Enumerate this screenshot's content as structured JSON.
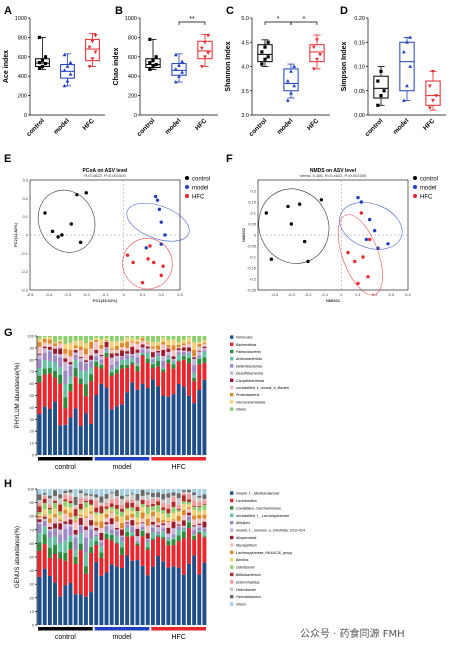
{
  "colors": {
    "control": "#000000",
    "model": "#1f3fbf",
    "HFC": "#e8262b"
  },
  "chart_data": [
    {
      "type": "box",
      "panel": "A",
      "ylabel": "Ace index",
      "categories": [
        "control",
        "model",
        "HFC"
      ],
      "ylim": [
        0,
        1000
      ],
      "yticks": [
        0,
        200,
        400,
        600,
        800,
        1000
      ],
      "ytick_labels": [
        "0",
        "200",
        "400",
        "600",
        "800",
        "1000"
      ],
      "boxes": [
        {
          "min": 470,
          "q1": 500,
          "median": 535,
          "q3": 580,
          "max": 800,
          "points": [
            480,
            500,
            530,
            540,
            560,
            600,
            800
          ]
        },
        {
          "min": 300,
          "q1": 380,
          "median": 450,
          "q3": 520,
          "max": 630,
          "points": [
            300,
            350,
            420,
            460,
            500,
            540,
            620
          ]
        },
        {
          "min": 500,
          "q1": 560,
          "median": 680,
          "q3": 780,
          "max": 840,
          "points": [
            500,
            580,
            650,
            700,
            760,
            820
          ]
        }
      ]
    },
    {
      "type": "box",
      "panel": "B",
      "ylabel": "Chao index",
      "categories": [
        "control",
        "model",
        "HFC"
      ],
      "ylim": [
        0,
        1000
      ],
      "yticks": [
        0,
        200,
        400,
        600,
        800,
        1000
      ],
      "ytick_labels": [
        "0",
        "200",
        "400",
        "600",
        "800",
        "1000"
      ],
      "boxes": [
        {
          "min": 470,
          "q1": 490,
          "median": 520,
          "q3": 580,
          "max": 780,
          "points": [
            470,
            500,
            520,
            540,
            560,
            600,
            780
          ]
        },
        {
          "min": 340,
          "q1": 410,
          "median": 460,
          "q3": 530,
          "max": 630,
          "points": [
            340,
            400,
            440,
            470,
            510,
            550,
            620
          ]
        },
        {
          "min": 500,
          "q1": 580,
          "median": 660,
          "q3": 760,
          "max": 830,
          "points": [
            500,
            600,
            640,
            690,
            750,
            820
          ]
        }
      ],
      "significance": [
        {
          "from": 1,
          "to": 2,
          "label": "**"
        }
      ]
    },
    {
      "type": "box",
      "panel": "C",
      "ylabel": "Shannon Index",
      "categories": [
        "control",
        "model",
        "HFC"
      ],
      "ylim": [
        3.0,
        5.0
      ],
      "yticks": [
        3.0,
        3.5,
        4.0,
        4.5,
        5.0
      ],
      "ytick_labels": [
        "3.0",
        "3.5",
        "4.0",
        "4.5",
        "5.0"
      ],
      "boxes": [
        {
          "min": 4.0,
          "q1": 4.1,
          "median": 4.25,
          "q3": 4.45,
          "max": 4.55,
          "points": [
            4.05,
            4.15,
            4.2,
            4.3,
            4.4,
            4.5
          ]
        },
        {
          "min": 3.35,
          "q1": 3.5,
          "median": 3.65,
          "q3": 3.95,
          "max": 4.05,
          "points": [
            3.3,
            3.45,
            3.6,
            3.7,
            3.9,
            4.0
          ]
        },
        {
          "min": 3.95,
          "q1": 4.1,
          "median": 4.3,
          "q3": 4.45,
          "max": 4.65,
          "points": [
            3.95,
            4.15,
            4.25,
            4.4,
            4.55
          ]
        }
      ],
      "significance": [
        {
          "from": 0,
          "to": 1,
          "label": "*"
        },
        {
          "from": 1,
          "to": 2,
          "label": "*"
        }
      ]
    },
    {
      "type": "box",
      "panel": "D",
      "ylabel": "Simpson Index",
      "categories": [
        "control",
        "model",
        "HFC"
      ],
      "ylim": [
        0,
        0.2
      ],
      "yticks": [
        0,
        0.05,
        0.1,
        0.15,
        0.2
      ],
      "ytick_labels": [
        "0.00",
        "0.05",
        "0.10",
        "0.15",
        "0.20"
      ],
      "boxes": [
        {
          "min": 0.02,
          "q1": 0.035,
          "median": 0.055,
          "q3": 0.08,
          "max": 0.1,
          "points": [
            0.02,
            0.04,
            0.05,
            0.07,
            0.09
          ]
        },
        {
          "min": 0.03,
          "q1": 0.05,
          "median": 0.11,
          "q3": 0.15,
          "max": 0.16,
          "points": [
            0.03,
            0.06,
            0.1,
            0.13,
            0.15,
            0.16
          ]
        },
        {
          "min": 0.01,
          "q1": 0.02,
          "median": 0.04,
          "q3": 0.07,
          "max": 0.09,
          "points": [
            0.015,
            0.03,
            0.04,
            0.06,
            0.09
          ]
        }
      ]
    },
    {
      "type": "scatter",
      "panel": "E",
      "title": "PCoA on ASV level",
      "subtitle": "R=0.4622, P=0.001000",
      "xlabel": "PC1(33.62%)",
      "ylabel": "PC2(12.82%)",
      "xlim": [
        -0.5,
        0.3
      ],
      "ylim": [
        -0.3,
        0.3
      ],
      "xticks": [
        -0.5,
        -0.4,
        -0.3,
        -0.2,
        -0.1,
        0,
        0.1,
        0.2,
        0.3
      ],
      "xtick_labels": [
        "-0.5",
        "-0.4",
        "-0.3",
        "-0.2",
        "-0.1",
        "0",
        "0.1",
        "0.2",
        "0.3"
      ],
      "yticks": [
        -0.3,
        -0.2,
        -0.1,
        0,
        0.1,
        0.2,
        0.3
      ],
      "ytick_labels": [
        "-0.3",
        "-0.2",
        "-0.1",
        "0",
        "0.1",
        "0.2",
        "0.3"
      ],
      "legend": [
        "control",
        "model",
        "HFC"
      ],
      "series": [
        {
          "name": "control",
          "points": [
            [
              -0.42,
              0.12
            ],
            [
              -0.38,
              0.02
            ],
            [
              -0.35,
              -0.01
            ],
            [
              -0.33,
              0.0
            ],
            [
              -0.28,
              0.06
            ],
            [
              -0.25,
              0.22
            ],
            [
              -0.2,
              0.23
            ],
            [
              -0.23,
              -0.04
            ]
          ]
        },
        {
          "name": "model",
          "points": [
            [
              0.17,
              0.21
            ],
            [
              0.18,
              0.19
            ],
            [
              0.2,
              0.07
            ],
            [
              0.22,
              0.0
            ],
            [
              0.12,
              -0.07
            ],
            [
              0.2,
              -0.05
            ],
            [
              0.19,
              0.14
            ]
          ]
        },
        {
          "name": "HFC",
          "points": [
            [
              0.02,
              -0.11
            ],
            [
              0.05,
              -0.15
            ],
            [
              0.13,
              -0.13
            ],
            [
              0.16,
              -0.15
            ],
            [
              0.2,
              -0.22
            ],
            [
              0.1,
              -0.26
            ],
            [
              0.21,
              -0.17
            ],
            [
              0.14,
              -0.06
            ]
          ]
        }
      ]
    },
    {
      "type": "scatter",
      "panel": "F",
      "title": "NMDS on ASV level",
      "subtitle": "stress: 0.166, R=0.4622, P=0.001000",
      "xlabel": "NMDS1",
      "ylabel": "NMDS2",
      "xlim": [
        -0.5,
        0.4
      ],
      "ylim": [
        -0.25,
        0.25
      ],
      "xticks": [
        -0.4,
        -0.3,
        -0.2,
        -0.1,
        0,
        0.1,
        0.2,
        0.3,
        0.4
      ],
      "xtick_labels": [
        "-0.4",
        "-0.3",
        "-0.2",
        "-0.1",
        "0",
        "0.1",
        "0.2",
        "0.3",
        "0.4"
      ],
      "yticks": [
        -0.25,
        -0.2,
        -0.15,
        -0.1,
        -0.05,
        0,
        0.05,
        0.1,
        0.15,
        0.2
      ],
      "ytick_labels": [
        "-0.25",
        "-0.2",
        "-0.15",
        "-0.1",
        "-0.05",
        "0",
        "0.05",
        "0.1",
        "0.15",
        "0.2"
      ],
      "legend": [
        "control",
        "model",
        "HFC"
      ],
      "series": [
        {
          "name": "control",
          "points": [
            [
              -0.45,
              0.1
            ],
            [
              -0.42,
              -0.11
            ],
            [
              -0.32,
              0.13
            ],
            [
              -0.3,
              0.05
            ],
            [
              -0.25,
              0.14
            ],
            [
              -0.22,
              -0.03
            ],
            [
              -0.12,
              0.16
            ],
            [
              -0.2,
              -0.12
            ]
          ]
        },
        {
          "name": "model",
          "points": [
            [
              0.1,
              0.17
            ],
            [
              0.12,
              0.15
            ],
            [
              0.17,
              0.07
            ],
            [
              0.2,
              0.02
            ],
            [
              0.15,
              -0.02
            ],
            [
              0.22,
              -0.06
            ],
            [
              0.28,
              -0.04
            ]
          ]
        },
        {
          "name": "HFC",
          "points": [
            [
              0.04,
              -0.08
            ],
            [
              0.08,
              -0.12
            ],
            [
              0.13,
              -0.1
            ],
            [
              0.16,
              -0.19
            ],
            [
              0.1,
              -0.22
            ],
            [
              0.17,
              -0.02
            ],
            [
              0.12,
              0.1
            ]
          ]
        }
      ]
    },
    {
      "type": "bar",
      "stacked": true,
      "panel": "G",
      "ylabel": "PHYLUM  abundance(%)",
      "ylim": [
        0,
        100
      ],
      "yticks": [
        0,
        10,
        20,
        30,
        40,
        50,
        60,
        70,
        80,
        90,
        100
      ],
      "ytick_labels": [
        "0",
        "10",
        "20",
        "30",
        "40",
        "50",
        "60",
        "70",
        "80",
        "90",
        "100"
      ],
      "groups": [
        {
          "name": "control",
          "n": 11
        },
        {
          "name": "model",
          "n": 11
        },
        {
          "name": "HFC",
          "n": 11
        }
      ],
      "series": [
        {
          "name": "Firmicutes",
          "color": "#1f4f8b"
        },
        {
          "name": "Bacteroidota",
          "color": "#e8262b"
        },
        {
          "name": "Patescibacteria",
          "color": "#2e8b3a"
        },
        {
          "name": "Actinobacteriota",
          "color": "#66c2a5"
        },
        {
          "name": "Deferribacterota",
          "color": "#9c88c4"
        },
        {
          "name": "Desulfobacterota",
          "color": "#c6b4da"
        },
        {
          "name": "Campilobacterota",
          "color": "#9a1b2e"
        },
        {
          "name": "unclassified_k_norank_d_Bacteri",
          "color": "#f4c2c2"
        },
        {
          "name": "Proteobacteria",
          "color": "#e0892c"
        },
        {
          "name": "Verrucomicrobiota",
          "color": "#f3d37a"
        },
        {
          "name": "others",
          "color": "#8dcf6e"
        }
      ]
    },
    {
      "type": "bar",
      "stacked": true,
      "panel": "H",
      "ylabel": "GENUS  abundance(%)",
      "ylim": [
        0,
        100
      ],
      "yticks": [
        0,
        10,
        20,
        30,
        40,
        50,
        60,
        70,
        80,
        90,
        100
      ],
      "ytick_labels": [
        "0",
        "10",
        "20",
        "30",
        "40",
        "50",
        "60",
        "70",
        "80",
        "90",
        "100"
      ],
      "groups": [
        {
          "name": "control",
          "n": 11
        },
        {
          "name": "model",
          "n": 11
        },
        {
          "name": "HFC",
          "n": 11
        }
      ],
      "series": [
        {
          "name": "norank_f__Muribaculaceae",
          "color": "#1f4f8b"
        },
        {
          "name": "Lactobacillus",
          "color": "#e8262b"
        },
        {
          "name": "Candidatus_Saccharimonas",
          "color": "#2e8b3a"
        },
        {
          "name": "unclassified_f__Lachnospiraceae",
          "color": "#66c2a5"
        },
        {
          "name": "Allistipes",
          "color": "#9c88c4"
        },
        {
          "name": "norank_f__ruminoc_o_Clostridia_UCG-014",
          "color": "#c6b4da"
        },
        {
          "name": "Allopevotella",
          "color": "#9a1b2e"
        },
        {
          "name": "Mucispirillum",
          "color": "#f4c2c2"
        },
        {
          "name": "Lachnospiraceae_NK4A136_group",
          "color": "#e0892c"
        },
        {
          "name": "Bacillus",
          "color": "#f3d37a"
        },
        {
          "name": "Odoribacter",
          "color": "#8dcf6e"
        },
        {
          "name": "Bifidobacterium",
          "color": "#b22a2a"
        },
        {
          "name": "Enterorhabdus",
          "color": "#f59a9a"
        },
        {
          "name": "Helicobacter",
          "color": "#c9c9c9"
        },
        {
          "name": "Faecalibaculum",
          "color": "#6a6a6a"
        },
        {
          "name": "others",
          "color": "#a6cee3"
        }
      ]
    }
  ],
  "panel_labels": [
    "A",
    "B",
    "C",
    "D",
    "E",
    "F",
    "G",
    "H"
  ],
  "watermark": "公众号 · 药食同源 FMH"
}
